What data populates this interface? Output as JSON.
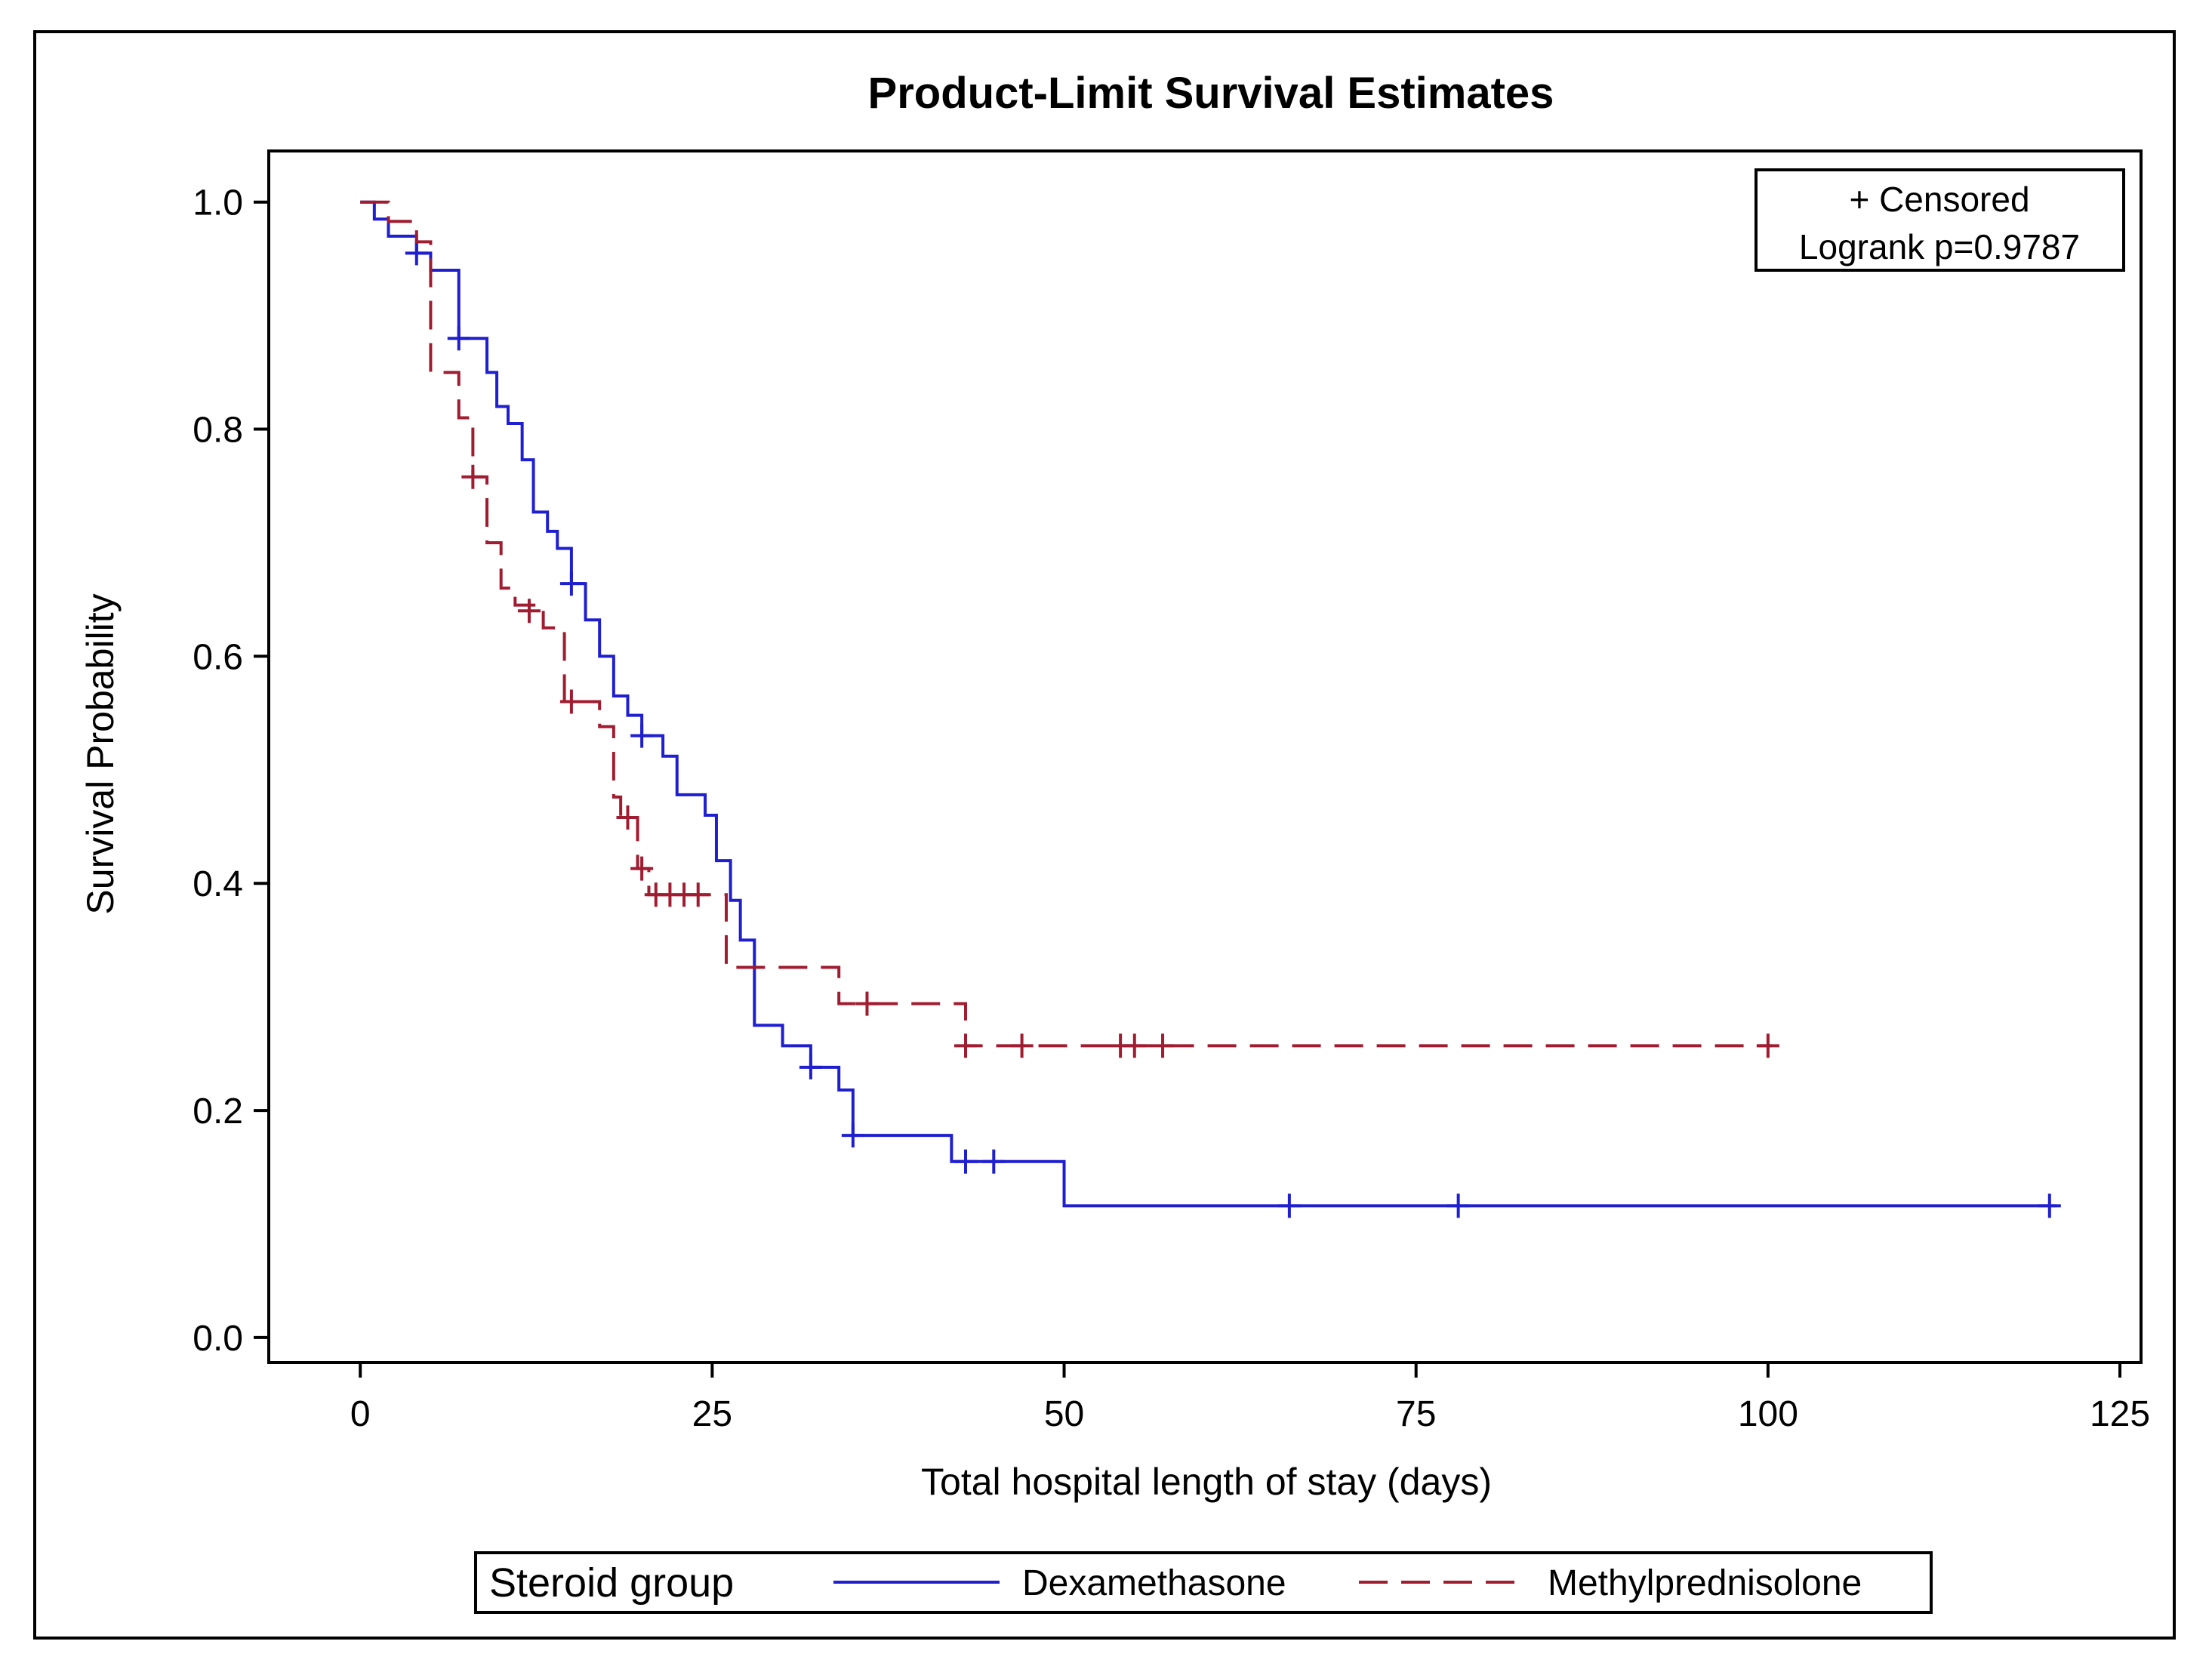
{
  "chart_data": {
    "type": "line",
    "title": "Product-Limit Survival Estimates",
    "xlabel": "Total hospital length of stay (days)",
    "ylabel": "Survival Probability",
    "xlim": [
      -6.5,
      126.5
    ],
    "ylim": [
      -0.022,
      1.045
    ],
    "xticks": [
      0,
      25,
      50,
      75,
      100,
      125
    ],
    "xtick_labels": [
      "0",
      "25",
      "50",
      "75",
      "100",
      "125"
    ],
    "yticks": [
      0.0,
      0.2,
      0.4,
      0.6,
      0.8,
      1.0
    ],
    "ytick_labels": [
      "0.0",
      "0.2",
      "0.4",
      "0.6",
      "0.8",
      "1.0"
    ],
    "grid": false,
    "inset_lines": [
      "+ Censored",
      "Logrank p=0.9787"
    ],
    "legend": {
      "title": "Steroid group",
      "placement": "bottom",
      "entries": [
        "Dexamethasone",
        "Methylprednisolone"
      ]
    },
    "series": [
      {
        "name": "Dexamethasone",
        "color": "#1f1fd0",
        "dash": "solid",
        "steps": [
          [
            0,
            1.0
          ],
          [
            1,
            0.985
          ],
          [
            2,
            0.97
          ],
          [
            4,
            0.955
          ],
          [
            5,
            0.94
          ],
          [
            7,
            0.88
          ],
          [
            9,
            0.85
          ],
          [
            9.7,
            0.82
          ],
          [
            10.5,
            0.805
          ],
          [
            11.5,
            0.773
          ],
          [
            12.3,
            0.727
          ],
          [
            13.3,
            0.71
          ],
          [
            14,
            0.695
          ],
          [
            15,
            0.664
          ],
          [
            16,
            0.632
          ],
          [
            17,
            0.6
          ],
          [
            18,
            0.565
          ],
          [
            19,
            0.548
          ],
          [
            20,
            0.53
          ],
          [
            21.5,
            0.512
          ],
          [
            22.5,
            0.478
          ],
          [
            24.5,
            0.46
          ],
          [
            25.3,
            0.42
          ],
          [
            26.3,
            0.385
          ],
          [
            27,
            0.35
          ],
          [
            28,
            0.275
          ],
          [
            30,
            0.257
          ],
          [
            32,
            0.238
          ],
          [
            34,
            0.218
          ],
          [
            35,
            0.178
          ],
          [
            42,
            0.155
          ],
          [
            50,
            0.116
          ],
          [
            120.5,
            0.116
          ]
        ],
        "censored": [
          [
            4,
            0.955
          ],
          [
            7,
            0.88
          ],
          [
            15,
            0.664
          ],
          [
            20,
            0.53
          ],
          [
            32,
            0.238
          ],
          [
            35,
            0.178
          ],
          [
            43,
            0.155
          ],
          [
            45,
            0.155
          ],
          [
            66,
            0.116
          ],
          [
            78,
            0.116
          ],
          [
            120,
            0.116
          ]
        ]
      },
      {
        "name": "Methylprednisolone",
        "color": "#a01c30",
        "dash": "dashed",
        "steps": [
          [
            0,
            1.0
          ],
          [
            2,
            0.983
          ],
          [
            4,
            0.965
          ],
          [
            5,
            0.85
          ],
          [
            7,
            0.81
          ],
          [
            8,
            0.758
          ],
          [
            9,
            0.7
          ],
          [
            10,
            0.66
          ],
          [
            11,
            0.645
          ],
          [
            13,
            0.625
          ],
          [
            14.5,
            0.56
          ],
          [
            17,
            0.538
          ],
          [
            18,
            0.476
          ],
          [
            18.5,
            0.458
          ],
          [
            19.7,
            0.413
          ],
          [
            20.5,
            0.39
          ],
          [
            26,
            0.326
          ],
          [
            34,
            0.294
          ],
          [
            43,
            0.257
          ],
          [
            100.3,
            0.257
          ]
        ],
        "censored": [
          [
            8,
            0.758
          ],
          [
            12,
            0.64
          ],
          [
            15,
            0.56
          ],
          [
            19,
            0.458
          ],
          [
            20,
            0.413
          ],
          [
            21,
            0.39
          ],
          [
            22,
            0.39
          ],
          [
            23,
            0.39
          ],
          [
            24,
            0.39
          ],
          [
            36,
            0.294
          ],
          [
            43,
            0.257
          ],
          [
            47,
            0.257
          ],
          [
            54,
            0.257
          ],
          [
            55,
            0.257
          ],
          [
            57,
            0.257
          ],
          [
            100,
            0.257
          ]
        ]
      }
    ]
  }
}
